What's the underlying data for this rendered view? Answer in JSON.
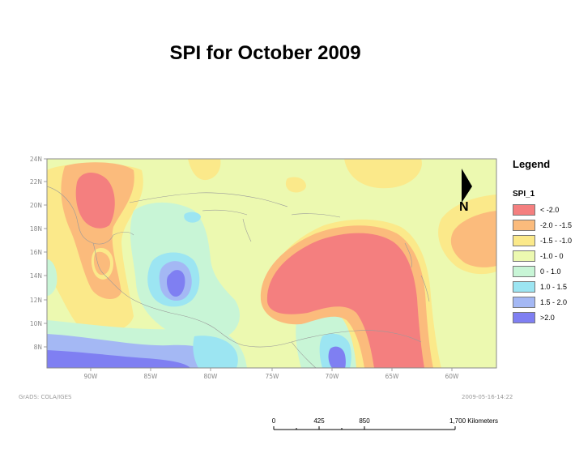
{
  "title": "SPI  for  October 2009",
  "map": {
    "lat_labels": [
      "24N",
      "22N",
      "20N",
      "18N",
      "16N",
      "14N",
      "12N",
      "10N",
      "8N"
    ],
    "lon_labels": [
      "90W",
      "85W",
      "80W",
      "75W",
      "70W",
      "65W",
      "60W"
    ],
    "colors": {
      "lt_m2": "#f47f7f",
      "m2_m15": "#fbbb7c",
      "m15_m1": "#fbe98a",
      "m1_0": "#ecf9b0",
      "p0_1": "#c8f5d6",
      "p1_15": "#9ce5f2",
      "p15_2": "#a4b8f4",
      "gt_2": "#7f7ff2"
    }
  },
  "legend": {
    "title": "Legend",
    "layer": "SPI_1",
    "items": [
      {
        "label": "< -2.0",
        "color": "#f47f7f"
      },
      {
        "label": "-2.0 - -1.5",
        "color": "#fbbb7c"
      },
      {
        "label": "-1.5 -  -1.0",
        "color": "#fbe98a"
      },
      {
        "label": "-1.0 - 0",
        "color": "#ecf9b0"
      },
      {
        "label": "0 - 1.0",
        "color": "#c8f5d6"
      },
      {
        "label": "1.0 - 1.5",
        "color": "#9ce5f2"
      },
      {
        "label": "1.5 - 2.0",
        "color": "#a4b8f4"
      },
      {
        "label": ">2.0",
        "color": "#7f7ff2"
      }
    ]
  },
  "north_label": "N",
  "credit_left": "GrADS: COLA/IGES",
  "credit_right": "2009-05-16-14:22",
  "scale": {
    "labels": [
      "0",
      "425",
      "850",
      "1,700 Kilometers"
    ]
  }
}
